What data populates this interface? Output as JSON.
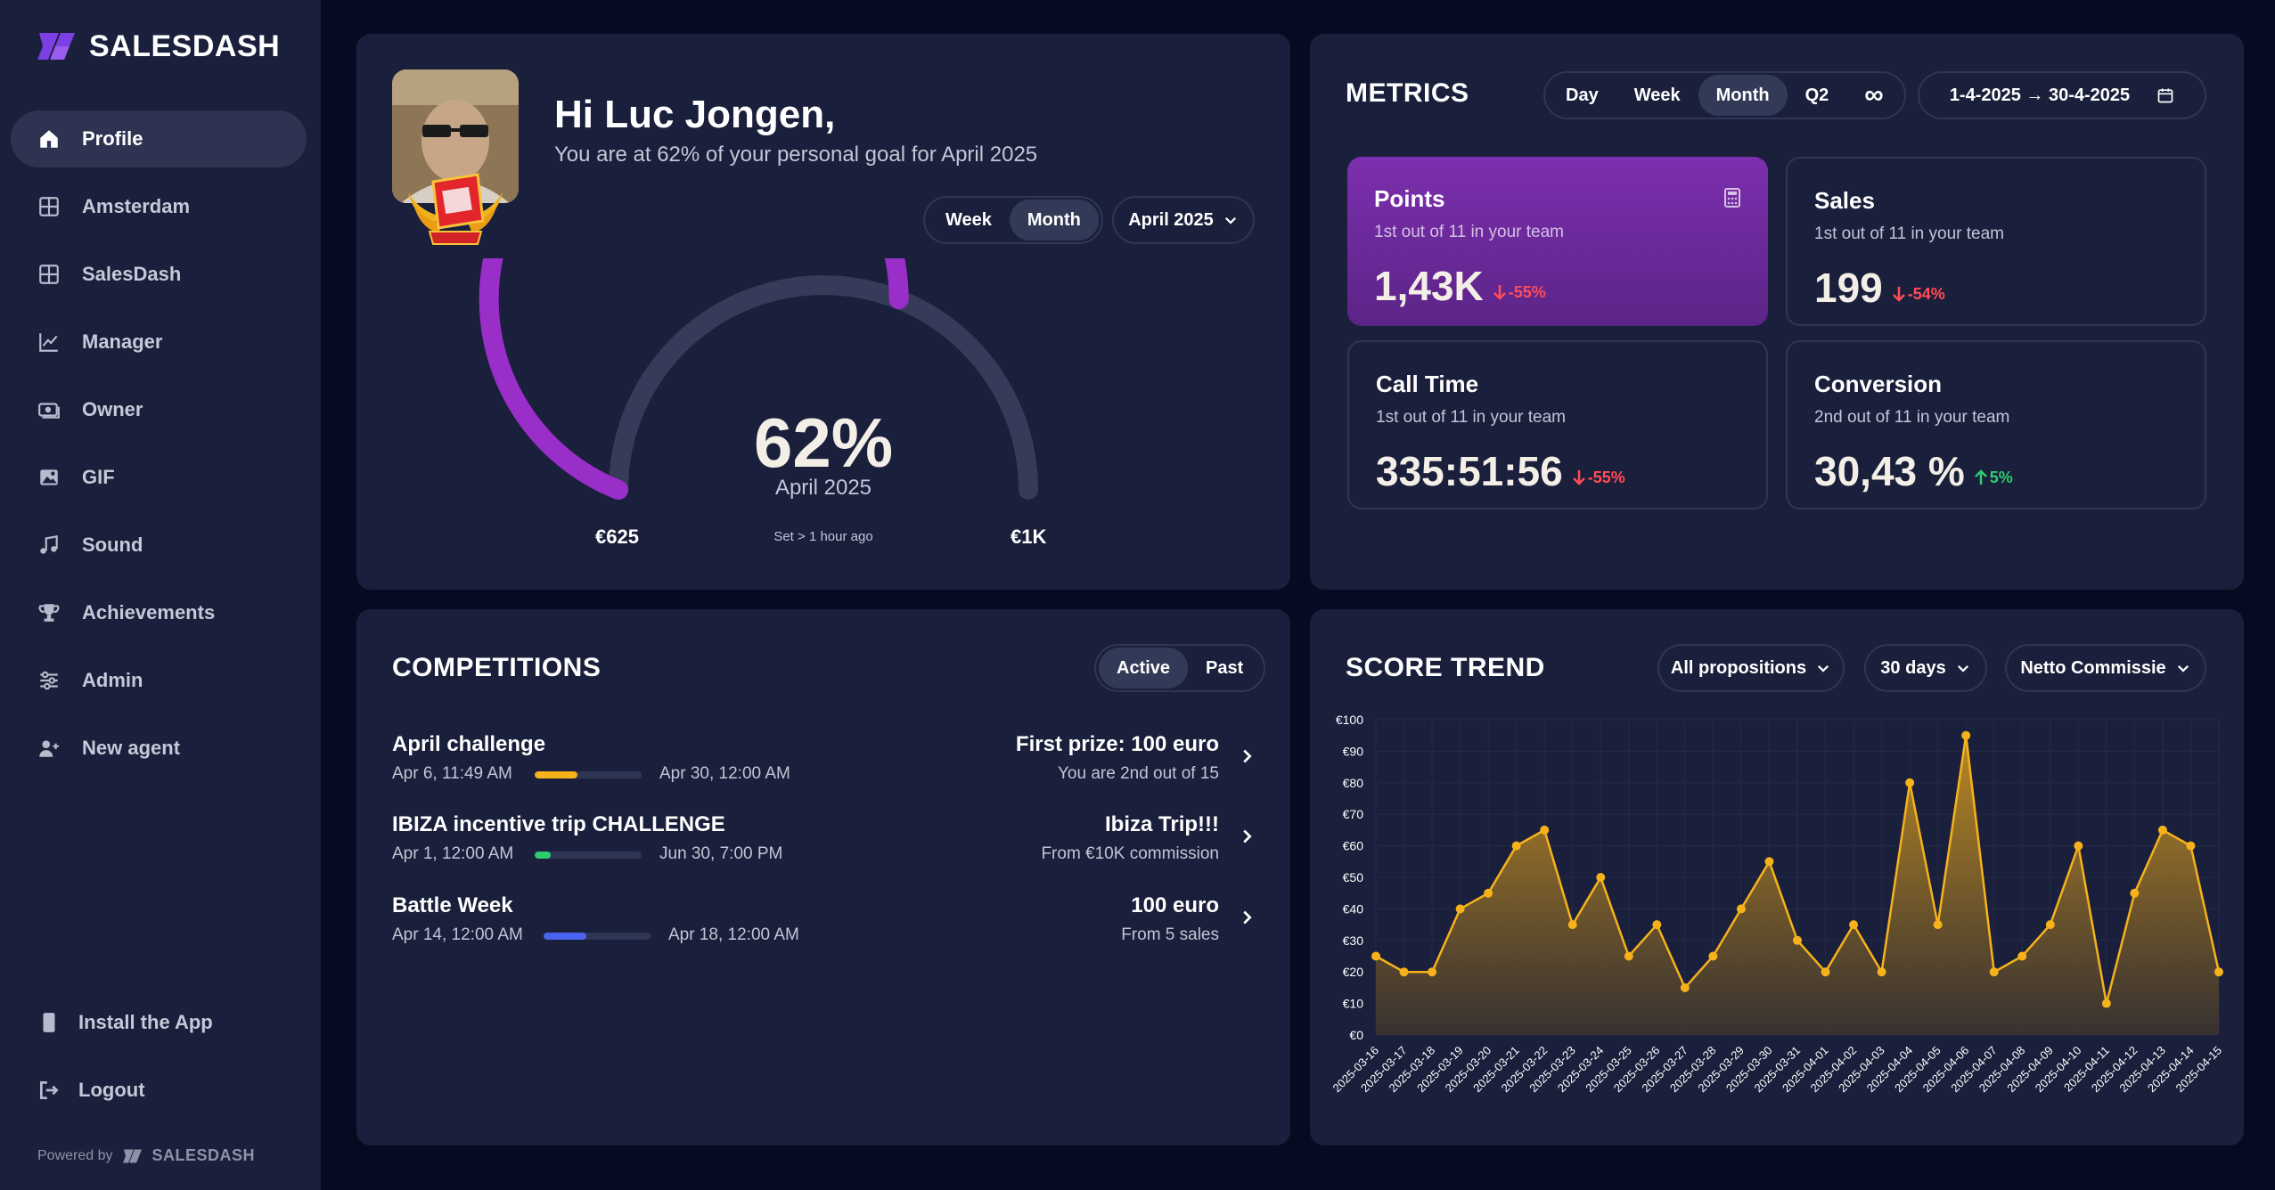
{
  "brand": {
    "name": "SALESDASH",
    "powered_by": "Powered by",
    "powered_brand": "SALESDASH"
  },
  "sidebar": {
    "items": [
      {
        "label": "Profile",
        "icon": "home-icon",
        "active": true
      },
      {
        "label": "Amsterdam",
        "icon": "grid-icon"
      },
      {
        "label": "SalesDash",
        "icon": "grid-icon"
      },
      {
        "label": "Manager",
        "icon": "chart-line-icon"
      },
      {
        "label": "Owner",
        "icon": "money-icon"
      },
      {
        "label": "GIF",
        "icon": "image-icon"
      },
      {
        "label": "Sound",
        "icon": "music-icon"
      },
      {
        "label": "Achievements",
        "icon": "trophy-icon"
      },
      {
        "label": "Admin",
        "icon": "sliders-icon"
      },
      {
        "label": "New agent",
        "icon": "user-plus-icon"
      }
    ],
    "install_label": "Install the App",
    "logout_label": "Logout"
  },
  "profile": {
    "greeting": "Hi Luc Jongen,",
    "subtitle": "You are at 62% of your personal goal for April 2025",
    "toggle": [
      "Week",
      "Month"
    ],
    "toggle_active": "Month",
    "period_dropdown": "April 2025",
    "gauge": {
      "percent": 62,
      "percent_label": "62%",
      "month": "April 2025",
      "set_label": "Set > 1 hour ago",
      "min_label": "€625",
      "max_label": "€1K"
    }
  },
  "metrics": {
    "title": "METRICS",
    "periods": [
      "Day",
      "Week",
      "Month",
      "Q2"
    ],
    "period_active": "Month",
    "infinity_label": "∞",
    "date_range": "1-4-2025 → 30-4-2025",
    "cards": [
      {
        "label": "Points",
        "rank": "1st out of 11 in your team",
        "value": "1,43K",
        "delta": "-55%",
        "direction": "down",
        "primary": true
      },
      {
        "label": "Sales",
        "rank": "1st out of 11 in your team",
        "value": "199",
        "delta": "-54%",
        "direction": "down"
      },
      {
        "label": "Call Time",
        "rank": "1st out of 11 in your team",
        "value": "335:51:56",
        "delta": "-55%",
        "direction": "down"
      },
      {
        "label": "Conversion",
        "rank": "2nd out of 11 in your team",
        "value": "30,43 %",
        "delta": "5%",
        "direction": "up"
      }
    ]
  },
  "competitions": {
    "title": "COMPETITIONS",
    "tabs": [
      "Active",
      "Past"
    ],
    "tab_active": "Active",
    "items": [
      {
        "name": "April challenge",
        "start": "Apr 6, 11:49 AM",
        "end": "Apr 30, 12:00 AM",
        "progress": 0.4,
        "color": "#f5b21a",
        "prize": "First prize: 100 euro",
        "sub": "You are 2nd out of 15"
      },
      {
        "name": "IBIZA incentive trip CHALLENGE",
        "start": "Apr 1, 12:00 AM",
        "end": "Jun 30, 7:00 PM",
        "progress": 0.15,
        "color": "#2ecc71",
        "prize": "Ibiza Trip!!!",
        "sub": "From €10K commission"
      },
      {
        "name": "Battle Week",
        "start": "Apr 14, 12:00 AM",
        "end": "Apr 18, 12:00 AM",
        "progress": 0.4,
        "color": "#4a63f0",
        "prize": "100 euro",
        "sub": "From 5 sales"
      }
    ]
  },
  "score_trend": {
    "title": "SCORE TREND",
    "filters": [
      "All propositions",
      "30 days",
      "Netto Commissie"
    ]
  },
  "chart_data": {
    "type": "area",
    "x": [
      "2025-03-16",
      "2025-03-17",
      "2025-03-18",
      "2025-03-19",
      "2025-03-20",
      "2025-03-21",
      "2025-03-22",
      "2025-03-23",
      "2025-03-24",
      "2025-03-25",
      "2025-03-26",
      "2025-03-27",
      "2025-03-28",
      "2025-03-29",
      "2025-03-30",
      "2025-03-31",
      "2025-04-01",
      "2025-04-02",
      "2025-04-03",
      "2025-04-04",
      "2025-04-05",
      "2025-04-06",
      "2025-04-07",
      "2025-04-08",
      "2025-04-09",
      "2025-04-10",
      "2025-04-11",
      "2025-04-12",
      "2025-04-13",
      "2025-04-14",
      "2025-04-15"
    ],
    "values": [
      25,
      20,
      20,
      40,
      45,
      60,
      65,
      35,
      50,
      25,
      35,
      15,
      25,
      40,
      55,
      30,
      20,
      35,
      20,
      80,
      35,
      95,
      20,
      25,
      35,
      60,
      10,
      45,
      65,
      60,
      20
    ],
    "ylim": [
      0,
      100
    ],
    "yticks": [
      "€0",
      "€10",
      "€20",
      "€30",
      "€40",
      "€50",
      "€60",
      "€70",
      "€80",
      "€90",
      "€100"
    ],
    "color": "#f5b21a",
    "grid": true
  }
}
